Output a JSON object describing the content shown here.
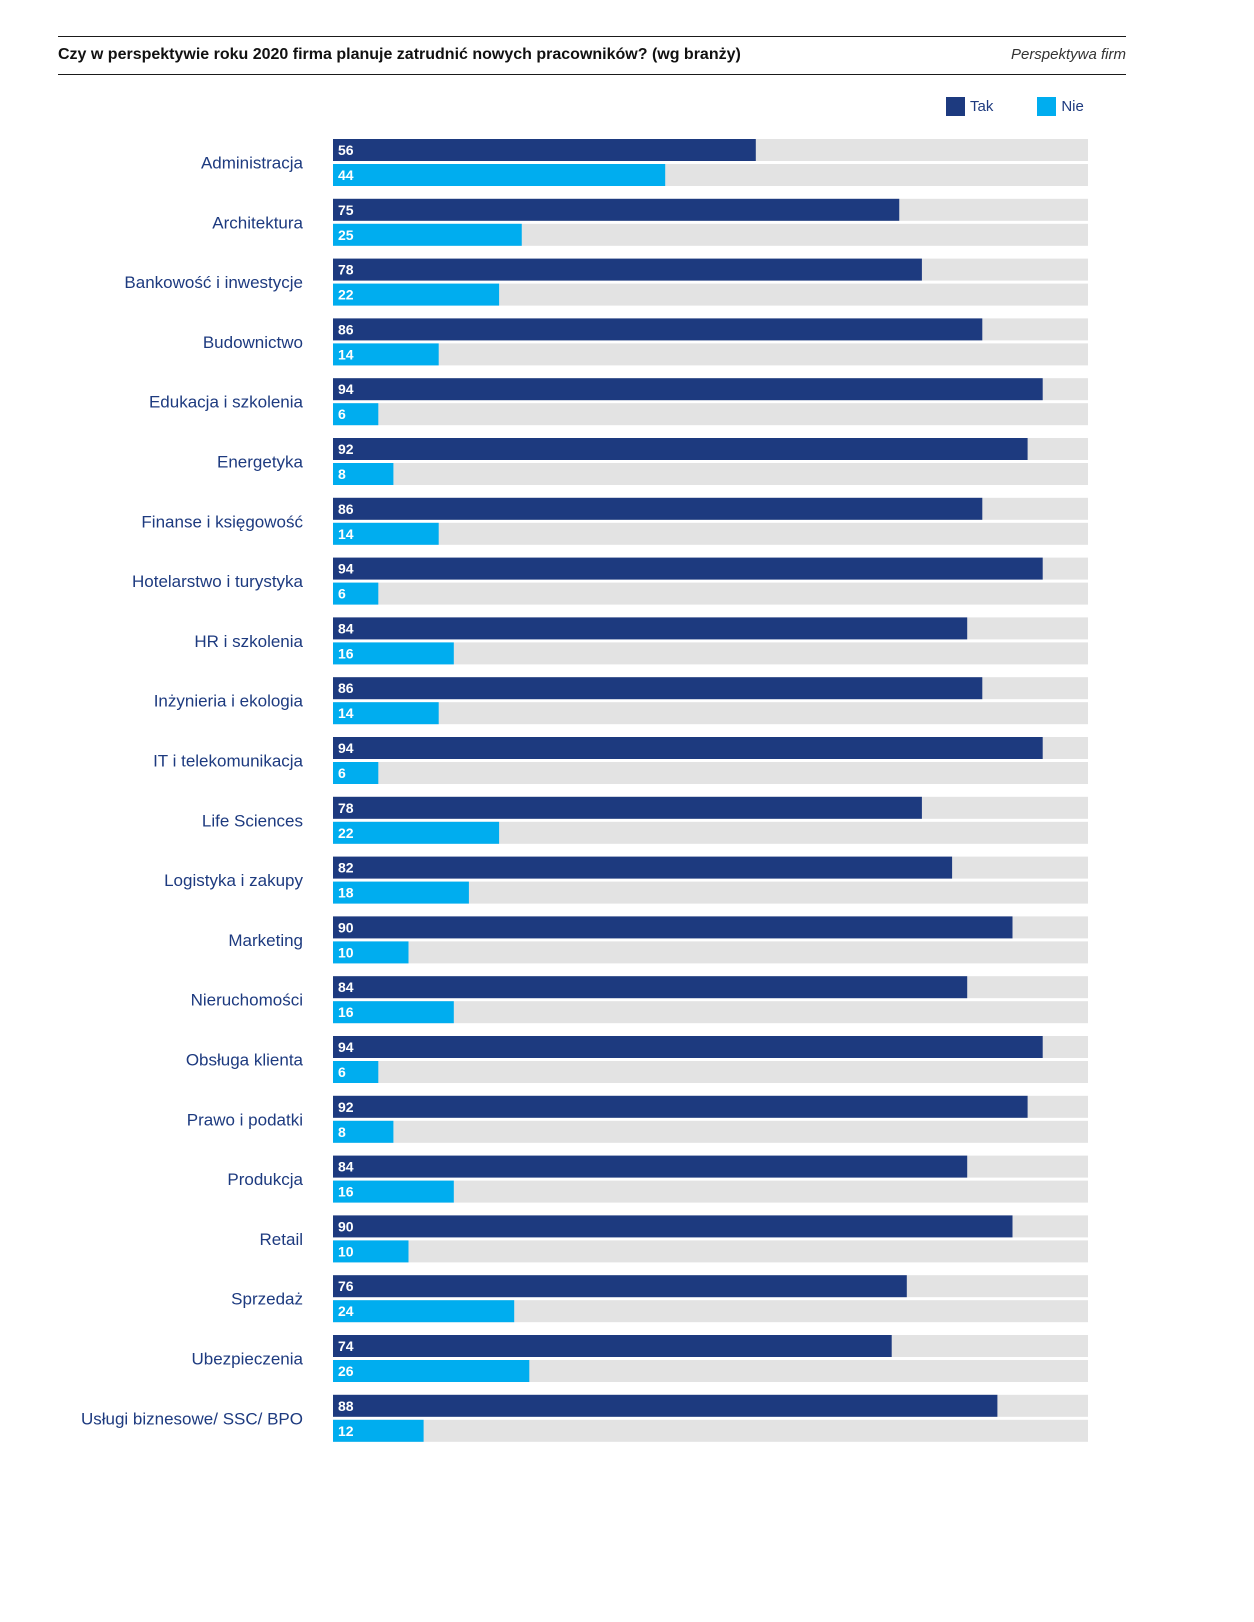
{
  "header": {
    "title": "Czy w perspektywie roku 2020 firma planuje zatrudnić nowych pracowników? (wg branży)",
    "section": "Perspektywa firm"
  },
  "colors": {
    "tak": "#1d3a7f",
    "nie": "#00adef",
    "track": "#e3e3e3",
    "label": "#1d3a7f"
  },
  "chart_data": {
    "type": "bar",
    "orientation": "horizontal",
    "title": "Czy w perspektywie roku 2020 firma planuje zatrudnić nowych pracowników? (wg branży)",
    "xlabel": "",
    "ylabel": "",
    "xlim": [
      0,
      100
    ],
    "grid": false,
    "legend": "top-right",
    "categories": [
      "Administracja",
      "Architektura",
      "Bankowość i inwestycje",
      "Budownictwo",
      "Edukacja i szkolenia",
      "Energetyka",
      "Finanse i księgowość",
      "Hotelarstwo i turystyka",
      "HR i szkolenia",
      "Inżynieria i ekologia",
      "IT i telekomunikacja",
      "Life Sciences",
      "Logistyka i zakupy",
      "Marketing",
      "Nieruchomości",
      "Obsługa klienta",
      "Prawo i podatki",
      "Produkcja",
      "Retail",
      "Sprzedaż",
      "Ubezpieczenia",
      "Usługi biznesowe/ SSC/ BPO"
    ],
    "series": [
      {
        "name": "Tak",
        "color": "#1d3a7f",
        "values": [
          56,
          75,
          78,
          86,
          94,
          92,
          86,
          94,
          84,
          86,
          94,
          78,
          82,
          90,
          84,
          94,
          92,
          84,
          90,
          76,
          74,
          88
        ]
      },
      {
        "name": "Nie",
        "color": "#00adef",
        "values": [
          44,
          25,
          22,
          14,
          6,
          8,
          14,
          6,
          16,
          14,
          6,
          22,
          18,
          10,
          16,
          6,
          8,
          16,
          10,
          24,
          26,
          12
        ]
      }
    ]
  }
}
